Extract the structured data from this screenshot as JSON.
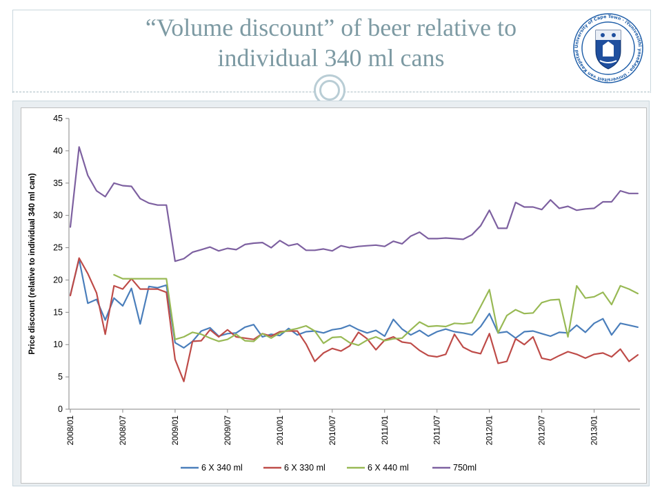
{
  "slide": {
    "title_line1": "“Volume discount” of beer relative to",
    "title_line2": "individual 340 ml cans",
    "logo": {
      "ring_text": "University of Cape Town · iYunivesithi yaseKapa · Universiteit van Kaapstad",
      "emblem": "shield-crest"
    }
  },
  "colors": {
    "title": "#7d9aa3",
    "series": [
      "#4a7ebb",
      "#be4b48",
      "#98b954",
      "#7d60a0"
    ]
  },
  "chart_data": {
    "type": "line",
    "title": "",
    "xlabel": "",
    "ylabel": "Price discount (relative to individual 340 ml can)",
    "ylim": [
      0,
      45
    ],
    "yticks": [
      0,
      5,
      10,
      15,
      20,
      25,
      30,
      35,
      40,
      45
    ],
    "x_periods": "monthly 2008/01 – 2013/06",
    "xtick_labels": [
      "2008/01",
      "2008/07",
      "2009/01",
      "2009/07",
      "2010/01",
      "2010/07",
      "2011/01",
      "2011/07",
      "2012/01",
      "2012/07",
      "2013/01"
    ],
    "grid": false,
    "legend": "bottom",
    "series": [
      {
        "name": "6 X 340 ml",
        "values": [
          17.7,
          23.2,
          16.4,
          17.0,
          13.8,
          17.2,
          16.0,
          18.7,
          13.2,
          19.0,
          18.8,
          19.2,
          10.3,
          9.5,
          10.5,
          12.1,
          12.6,
          11.3,
          11.7,
          11.8,
          12.7,
          13.1,
          11.2,
          11.6,
          11.4,
          12.5,
          11.5,
          12.0,
          12.1,
          11.8,
          12.3,
          12.5,
          13.0,
          12.3,
          11.8,
          12.2,
          11.3,
          13.9,
          12.4,
          11.5,
          12.2,
          11.3,
          12.0,
          12.4,
          12.0,
          11.8,
          11.5,
          12.8,
          14.8,
          11.8,
          12.0,
          11.0,
          12.0,
          12.1,
          11.7,
          11.3,
          11.9,
          11.8,
          13.0,
          11.9,
          13.3,
          14.0,
          11.5,
          13.3,
          13.0,
          12.7
        ]
      },
      {
        "name": "6 X 330 ml",
        "values": [
          17.6,
          23.4,
          21.0,
          18.0,
          11.6,
          19.1,
          18.6,
          20.2,
          18.6,
          18.6,
          18.6,
          18.1,
          7.7,
          4.3,
          10.5,
          10.6,
          12.3,
          11.2,
          12.3,
          11.2,
          11.0,
          10.8,
          11.7,
          11.3,
          12.0,
          12.1,
          12.1,
          10.1,
          7.4,
          8.7,
          9.4,
          9.0,
          9.8,
          11.9,
          10.9,
          9.2,
          10.7,
          11.2,
          10.4,
          10.2,
          9.1,
          8.3,
          8.1,
          8.5,
          11.6,
          9.6,
          8.9,
          8.6,
          11.7,
          7.1,
          7.4,
          10.9,
          10.0,
          11.2,
          7.9,
          7.6,
          8.3,
          8.9,
          8.5,
          7.9,
          8.5,
          8.7,
          8.1,
          9.3,
          7.4,
          8.4
        ]
      },
      {
        "name": "6 X 440 ml",
        "values": [
          null,
          null,
          null,
          null,
          null,
          20.8,
          20.2,
          20.2,
          20.2,
          20.2,
          20.2,
          20.2,
          10.8,
          11.2,
          11.9,
          11.6,
          11.0,
          10.5,
          10.8,
          11.6,
          10.6,
          10.5,
          11.7,
          11.0,
          11.8,
          12.2,
          12.5,
          12.9,
          12.1,
          10.2,
          11.1,
          11.2,
          10.3,
          9.9,
          10.7,
          11.2,
          10.6,
          10.9,
          11.0,
          12.3,
          13.5,
          12.8,
          12.9,
          12.8,
          13.3,
          13.2,
          13.4,
          15.9,
          18.5,
          11.8,
          14.5,
          15.4,
          14.8,
          14.9,
          16.5,
          16.9,
          17.0,
          11.2,
          19.1,
          17.2,
          17.4,
          18.1,
          16.2,
          19.1,
          18.6,
          17.9
        ]
      },
      {
        "name": "750ml",
        "values": [
          28.2,
          40.6,
          36.2,
          33.8,
          32.9,
          35.0,
          34.6,
          34.5,
          32.6,
          31.9,
          31.6,
          31.6,
          22.9,
          23.3,
          24.3,
          24.7,
          25.1,
          24.5,
          24.9,
          24.7,
          25.5,
          25.7,
          25.8,
          25.0,
          26.1,
          25.3,
          25.6,
          24.6,
          24.6,
          24.8,
          24.5,
          25.3,
          25.0,
          25.2,
          25.3,
          25.4,
          25.2,
          26.0,
          25.6,
          26.8,
          27.4,
          26.4,
          26.4,
          26.5,
          26.4,
          26.3,
          27.0,
          28.4,
          30.8,
          28.0,
          28.0,
          32.0,
          31.3,
          31.3,
          30.9,
          32.4,
          31.1,
          31.4,
          30.8,
          31.0,
          31.1,
          32.1,
          32.1,
          33.8,
          33.4,
          33.4
        ]
      }
    ]
  }
}
